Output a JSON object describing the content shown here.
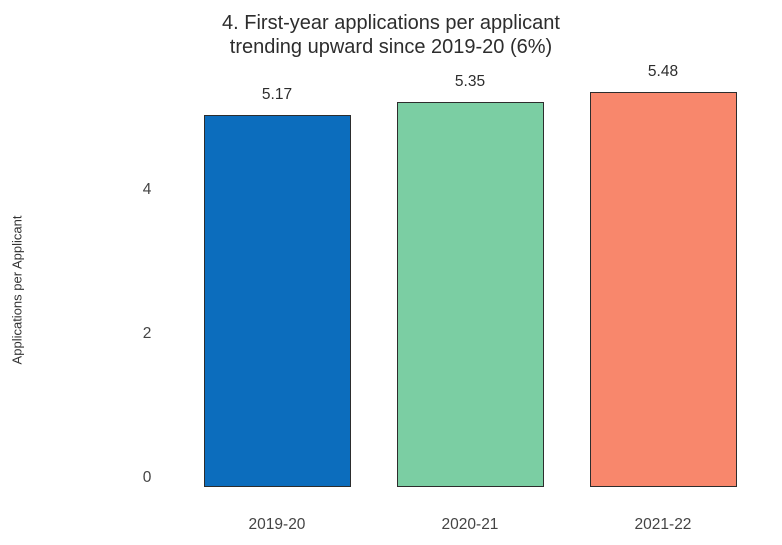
{
  "chart_data": {
    "type": "bar",
    "title": "4. First-year applications per applicant trending upward since 2019-20 (6%)",
    "title_line1": "4. First-year applications per applicant",
    "title_line2": "trending upward since 2019-20 (6%)",
    "categories": [
      "2019-20",
      "2020-21",
      "2021-22"
    ],
    "values": [
      5.17,
      5.35,
      5.48
    ],
    "value_labels": [
      "5.17",
      "5.35",
      "5.48"
    ],
    "series": [
      {
        "name": "Applications per Applicant",
        "values": [
          5.17,
          5.35,
          5.48
        ]
      }
    ],
    "bar_colors": [
      "#0c6dbd",
      "#7bcea3",
      "#f8876c"
    ],
    "bar_border_color": "#2d2d2d",
    "xlabel": "",
    "ylabel": "Applications per Applicant",
    "yticks": [
      0,
      2,
      4
    ],
    "ylim": [
      0,
      5.58
    ],
    "grid": false,
    "legend": false,
    "title_color": "#2d2d2d",
    "tick_color": "#444444",
    "background_color": "#ffffff"
  }
}
